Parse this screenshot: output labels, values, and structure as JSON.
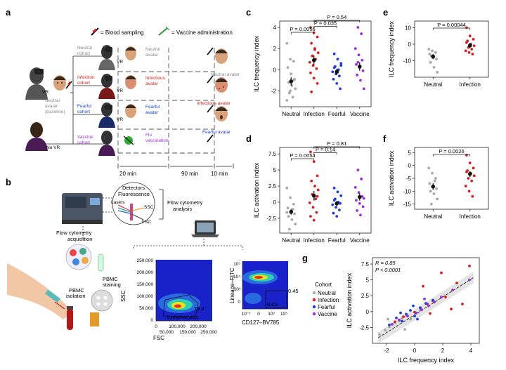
{
  "panels": {
    "a": "a",
    "b": "b",
    "c": "c",
    "d": "d",
    "e": "e",
    "f": "f",
    "g": "g"
  },
  "colors": {
    "neutral": "#a8a8a8",
    "infection": "#d42020",
    "fearful": "#1f3fd1",
    "vaccine": "#9b30d9",
    "mean": "#111111"
  },
  "panel_a": {
    "legend_blood": "= Blood sampling",
    "legend_vaccine": "= Vaccine administration",
    "baseline_vr": "VR",
    "baseline_avatar": [
      "Neutral",
      "avatar",
      "(baseline)"
    ],
    "cohorts": [
      {
        "lines": [
          "Neutral",
          "cohort"
        ],
        "color": "#8a8a8a"
      },
      {
        "lines": [
          "Infection",
          "cohort"
        ],
        "color": "#d42020"
      },
      {
        "lines": [
          "Fearful",
          "cohort"
        ],
        "color": "#1f3fd1"
      },
      {
        "lines": [
          "Vaccine",
          "cohort"
        ],
        "color": "#9b30d9"
      }
    ],
    "stim": [
      {
        "lines": [
          "Neutral",
          "avatar"
        ],
        "color": "#8a8a8a"
      },
      {
        "lines": [
          "Infectious",
          "avatar"
        ],
        "color": "#d42020"
      },
      {
        "lines": [
          "Fearful",
          "avatar"
        ],
        "color": "#1f3fd1"
      },
      {
        "lines": [
          "Flu",
          "vaccination"
        ],
        "color": "#9b30d9"
      }
    ],
    "vr_labels": [
      "VR",
      "VR",
      "VR"
    ],
    "no_vr": "No VR",
    "end_labels": [
      {
        "text": "Neutral avatar",
        "color": "#8a8a8a"
      },
      {
        "text": "Infectious avatar",
        "color": "#d42020"
      },
      {
        "text": "Fearful avatar",
        "color": "#1f3fd1"
      }
    ],
    "time_1": "20 min",
    "time_2": "90 min",
    "time_3": "10 min"
  },
  "panel_b": {
    "detectors": "Detectors",
    "fluorescence": "Fluorescence",
    "lasers": "Lasers",
    "ssc": "SSC",
    "fsc": "FSC",
    "flow_analysis": [
      "Flow cytometry",
      "analysis"
    ],
    "flow_acquisition": [
      "Flow cytometry",
      "acquisition"
    ],
    "pbmc_staining": [
      "PBMC",
      "staining"
    ],
    "pbmc_isolation": [
      "PBMC",
      "isolation"
    ],
    "gate_lymph": "73.2",
    "gate_lymph_label": "Lymphocytes",
    "gate_ilc": "0.45",
    "gate_ilc_label": "ILCs"
  },
  "chart_data": [
    {
      "id": "c",
      "type": "scatter",
      "ylabel": "ILC frequency index",
      "categories": [
        "Neutral",
        "Infection",
        "Fearful",
        "Vaccine"
      ],
      "ylim": [
        -3.5,
        4.6
      ],
      "yticks": [
        -2,
        0,
        2,
        4
      ],
      "series": [
        {
          "name": "Neutral",
          "values": [
            2.5,
            1.0,
            0.8,
            0.2,
            -0.4,
            -0.9,
            -1.2,
            -1.5,
            -1.8,
            -2.2,
            -2.6,
            -2.9,
            -2.0,
            -1.0
          ],
          "mean": -1.1,
          "sem": 0.4
        },
        {
          "name": "Infection",
          "values": [
            4.0,
            3.5,
            3.1,
            2.5,
            2.0,
            1.6,
            1.3,
            1.0,
            0.7,
            0.4,
            0.1,
            -0.3,
            -0.8,
            -1.3,
            -2.1,
            1.9
          ],
          "mean": 0.9,
          "sem": 0.45
        },
        {
          "name": "Fearful",
          "values": [
            1.5,
            1.0,
            0.6,
            0.3,
            0.0,
            -0.2,
            -0.4,
            -0.6,
            -0.9,
            -1.3,
            -1.8,
            0.2,
            -0.1,
            0.4
          ],
          "mean": -0.2,
          "sem": 0.3
        },
        {
          "name": "Vaccine",
          "values": [
            4.0,
            3.4,
            2.0,
            1.4,
            0.9,
            0.5,
            0.2,
            -0.1,
            -0.5,
            -1.0,
            -1.8,
            0.7
          ],
          "mean": 0.3,
          "sem": 0.4
        }
      ],
      "brackets": [
        {
          "from": 0,
          "to": 1,
          "label": "P = 0.0056"
        },
        {
          "from": 1,
          "to": 2,
          "label": "P = 0.035"
        },
        {
          "from": 1,
          "to": 3,
          "label": "P = 0.54"
        }
      ]
    },
    {
      "id": "d",
      "type": "scatter",
      "ylabel": "ILC activation index",
      "categories": [
        "Neutral",
        "Infection",
        "Fearful",
        "Vaccine"
      ],
      "ylim": [
        -4.8,
        8.5
      ],
      "yticks": [
        -2.5,
        0,
        2.5,
        5,
        7.5
      ],
      "series": [
        {
          "name": "Neutral",
          "values": [
            2.2,
            0.7,
            -0.3,
            -0.9,
            -1.4,
            -1.8,
            -2.2,
            -2.7,
            -3.4,
            -4.2,
            -1.1,
            -1.6
          ],
          "mean": -1.5,
          "sem": 0.45
        },
        {
          "name": "Infection",
          "values": [
            7.8,
            6.3,
            4.1,
            3.3,
            2.5,
            1.9,
            1.2,
            0.5,
            -0.1,
            -0.8,
            -1.6,
            -2.2,
            -2.8,
            0.9
          ],
          "mean": 1.0,
          "sem": 0.75
        },
        {
          "name": "Fearful",
          "values": [
            2.2,
            1.6,
            1.0,
            0.5,
            0.0,
            -0.4,
            -0.8,
            -1.2,
            -1.7,
            -2.2,
            -0.2,
            0.3
          ],
          "mean": -0.2,
          "sem": 0.4
        },
        {
          "name": "Vaccine",
          "values": [
            5.0,
            3.6,
            2.3,
            1.5,
            0.9,
            0.3,
            -0.2,
            -0.7,
            -1.3,
            -2.0,
            0.6
          ],
          "mean": 0.8,
          "sem": 0.55
        }
      ],
      "brackets": [
        {
          "from": 0,
          "to": 1,
          "label": "P = 0.0054"
        },
        {
          "from": 1,
          "to": 2,
          "label": "P = 0.14"
        },
        {
          "from": 1,
          "to": 3,
          "label": "P = 0.81"
        }
      ]
    },
    {
      "id": "e",
      "type": "scatter",
      "ylabel": "ILC frequency index",
      "categories": [
        "Neutral",
        "Infection"
      ],
      "ylim": [
        -20,
        14
      ],
      "yticks": [
        -10,
        0,
        10
      ],
      "series": [
        {
          "name": "Neutral",
          "values": [
            -3,
            -4,
            -5,
            -6,
            -8,
            -9,
            -11,
            -14,
            -17,
            -7
          ],
          "mean": -7.5,
          "sem": 1.6
        },
        {
          "name": "Infection",
          "values": [
            10,
            5,
            3,
            2,
            0,
            -1,
            -2,
            -3,
            -4,
            -5,
            -6,
            1
          ],
          "mean": -0.8,
          "sem": 1.5
        }
      ],
      "brackets": [
        {
          "from": 0,
          "to": 1,
          "label": "P = 0.00044"
        }
      ]
    },
    {
      "id": "f",
      "type": "scatter",
      "ylabel": "ILC activation index",
      "categories": [
        "Neutral",
        "Infection"
      ],
      "ylim": [
        -17,
        7
      ],
      "yticks": [
        -15,
        -10,
        -5,
        0,
        5
      ],
      "series": [
        {
          "name": "Neutral",
          "values": [
            -1,
            -3,
            -5,
            -7,
            -8,
            -9,
            -10,
            -11,
            -13,
            -15,
            -6
          ],
          "mean": -8.2,
          "sem": 1.3
        },
        {
          "name": "Infection",
          "values": [
            4,
            1,
            -1,
            -2,
            -3,
            -4,
            -5,
            -6,
            -8,
            -10,
            -12,
            -2.5
          ],
          "mean": -3.3,
          "sem": 1.2
        }
      ],
      "brackets": [
        {
          "from": 0,
          "to": 1,
          "label": "P = 0.0026"
        }
      ]
    },
    {
      "id": "g",
      "type": "scatter",
      "xlabel": "ILC frequency index",
      "ylabel": "ILC activation index",
      "xlim": [
        -3,
        4.6
      ],
      "ylim": [
        -5,
        8.5
      ],
      "xticks": [
        -2,
        0,
        2,
        4
      ],
      "yticks": [
        -2.5,
        0,
        2.5,
        5,
        7.5
      ],
      "stats_r": "R = 0.85",
      "stats_p": "P < 0.0001",
      "legend_title": "Cohort",
      "legend": [
        "Neutral",
        "Infection",
        "Fearful",
        "Vaccine"
      ],
      "fit": {
        "slope": 1.4,
        "intercept": -0.5
      },
      "points": {
        "Neutral": [
          [
            -2.5,
            -3.6
          ],
          [
            -2.1,
            -2.9
          ],
          [
            -1.8,
            -2.4
          ],
          [
            -1.4,
            -1.8
          ],
          [
            -1.1,
            -1.5
          ],
          [
            -0.9,
            -1.0
          ],
          [
            -0.6,
            -0.6
          ],
          [
            -0.3,
            -1.2
          ],
          [
            0.1,
            -0.3
          ],
          [
            0.4,
            0.2
          ],
          [
            -0.7,
            -2.8
          ],
          [
            -1.9,
            -1.2
          ]
        ],
        "Infection": [
          [
            3.9,
            7.2
          ],
          [
            1.9,
            6.1
          ],
          [
            3.0,
            4.5
          ],
          [
            0.6,
            4.0
          ],
          [
            2.2,
            2.3
          ],
          [
            1.3,
            1.7
          ],
          [
            0.9,
            1.2
          ],
          [
            0.4,
            0.6
          ],
          [
            0.0,
            -0.1
          ],
          [
            -0.8,
            -0.8
          ],
          [
            1.1,
            -0.3
          ],
          [
            2.6,
            0.4
          ],
          [
            3.4,
            1.2
          ],
          [
            -1.4,
            -1.6
          ]
        ],
        "Fearful": [
          [
            -1.8,
            -2.1
          ],
          [
            -1.3,
            -1.0
          ],
          [
            -0.9,
            -1.5
          ],
          [
            -0.6,
            -0.4
          ],
          [
            -0.3,
            0.2
          ],
          [
            0.0,
            -0.7
          ],
          [
            0.4,
            0.6
          ],
          [
            0.8,
            1.3
          ],
          [
            1.3,
            1.8
          ],
          [
            -1.0,
            -0.2
          ],
          [
            0.2,
            -1.2
          ],
          [
            -0.1,
            0.9
          ]
        ],
        "Vaccine": [
          [
            3.9,
            5.0
          ],
          [
            2.7,
            3.4
          ],
          [
            1.9,
            2.3
          ],
          [
            1.4,
            1.5
          ],
          [
            1.0,
            0.9
          ],
          [
            0.5,
            0.3
          ],
          [
            0.1,
            -0.2
          ],
          [
            -0.5,
            -0.7
          ],
          [
            -1.1,
            -1.3
          ],
          [
            0.7,
            2.0
          ],
          [
            -1.6,
            -2.0
          ]
        ]
      }
    }
  ]
}
